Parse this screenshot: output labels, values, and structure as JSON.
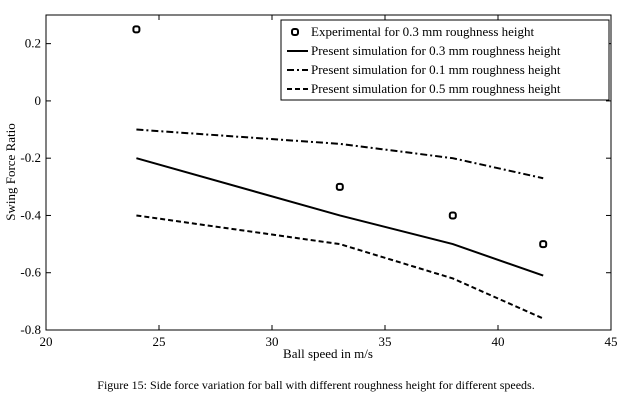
{
  "chart_data": {
    "type": "line",
    "xlabel": "Ball speed in m/s",
    "ylabel": "Swing Force Ratio",
    "xlim": [
      20,
      45
    ],
    "ylim": [
      -0.8,
      0.3
    ],
    "xticks": [
      20,
      25,
      30,
      35,
      40,
      45
    ],
    "yticks": [
      0.2,
      0,
      -0.2,
      -0.4,
      -0.6,
      -0.8
    ],
    "xtick_labels": [
      "20",
      "25",
      "30",
      "35",
      "40",
      "45"
    ],
    "ytick_labels": [
      "0.2",
      "0",
      "-0.2",
      "-0.4",
      "-0.6",
      "-0.8"
    ],
    "grid": false,
    "legend_position": "top-right",
    "series": [
      {
        "name": "Experimental for 0.3 mm roughness height",
        "style": "marker",
        "x": [
          24,
          33,
          38,
          42
        ],
        "y": [
          0.25,
          -0.3,
          -0.4,
          -0.5
        ]
      },
      {
        "name": "Present simulation for 0.3 mm roughness height",
        "style": "solid",
        "x": [
          24,
          33,
          38,
          42
        ],
        "y": [
          -0.2,
          -0.4,
          -0.5,
          -0.61
        ]
      },
      {
        "name": "Present simulation for 0.1 mm roughness height",
        "style": "dashdot",
        "x": [
          24,
          33,
          38,
          42
        ],
        "y": [
          -0.1,
          -0.15,
          -0.2,
          -0.27
        ]
      },
      {
        "name": "Present simulation for 0.5 mm roughness height",
        "style": "dashed",
        "x": [
          24,
          33,
          38,
          42
        ],
        "y": [
          -0.4,
          -0.5,
          -0.62,
          -0.76
        ]
      }
    ]
  },
  "caption": "Figure 15: Side force variation for ball with different roughness height for different speeds."
}
